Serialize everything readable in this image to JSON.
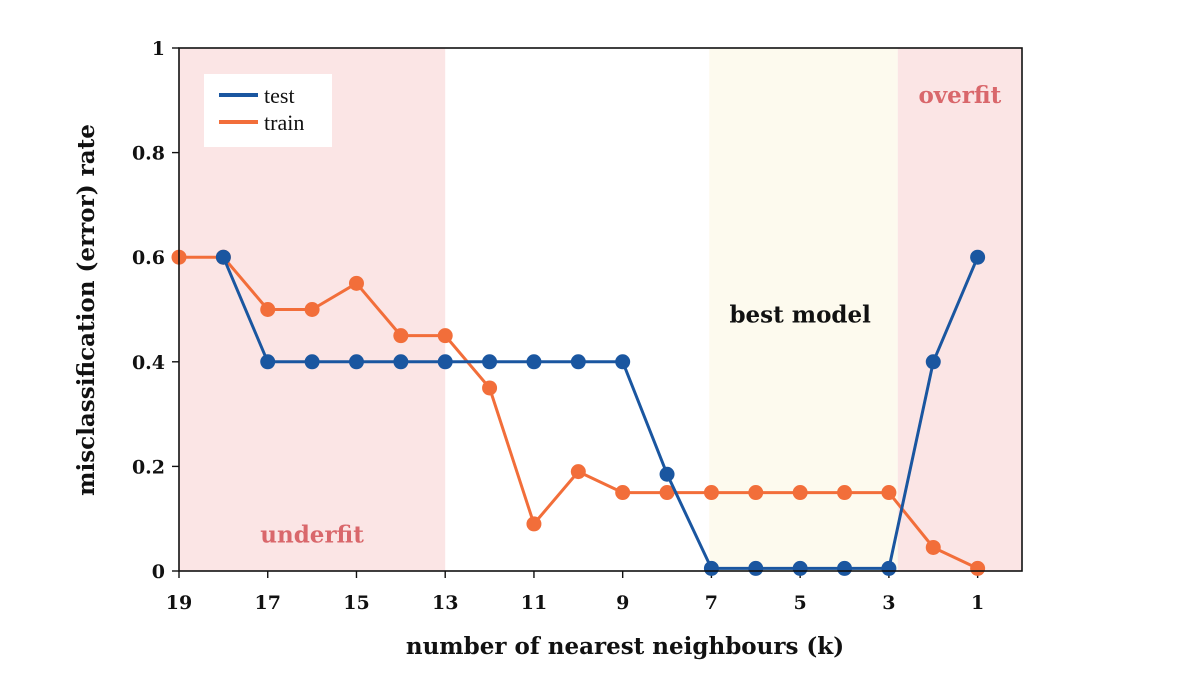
{
  "chart_data": {
    "type": "line",
    "xlabel": "number of nearest neighbours (k)",
    "ylabel": "misclassification (error) rate",
    "xlim": [
      19,
      0
    ],
    "ylim": [
      0,
      1
    ],
    "x_reversed": true,
    "x_ticks": [
      {
        "value": 19,
        "label": "19"
      },
      {
        "value": 17,
        "label": "17"
      },
      {
        "value": 15,
        "label": "15"
      },
      {
        "value": 13,
        "label": "13"
      },
      {
        "value": 11,
        "label": "11"
      },
      {
        "value": 9,
        "label": "9"
      },
      {
        "value": 7,
        "label": "7"
      },
      {
        "value": 5,
        "label": "5"
      },
      {
        "value": 3,
        "label": "3"
      },
      {
        "value": 1,
        "label": "1"
      }
    ],
    "y_ticks": [
      {
        "value": 0,
        "label": "0"
      },
      {
        "value": 0.2,
        "label": "0.2"
      },
      {
        "value": 0.4,
        "label": "0.4"
      },
      {
        "value": 0.6,
        "label": "0.6"
      },
      {
        "value": 0.8,
        "label": "0.8"
      },
      {
        "value": 1,
        "label": "1"
      }
    ],
    "grid": false,
    "legend_position": "top-left",
    "regions": [
      {
        "label": "underfit",
        "x_from": 19,
        "x_to": 13,
        "color": "#fbe5e5",
        "label_color": "#d9676b",
        "label_x": 16,
        "label_y": 0.07
      },
      {
        "label": "best model",
        "x_from": 7.05,
        "x_to": 2.8,
        "color": "#fdfaee",
        "label_color": "#111111",
        "label_x": 5,
        "label_y": 0.49
      },
      {
        "label": "overfit",
        "x_from": 2.8,
        "x_to": 0,
        "color": "#fbe5e5",
        "label_color": "#d9676b",
        "label_x": 1.4,
        "label_y": 0.91
      }
    ],
    "series": [
      {
        "name": "test",
        "color": "#1a56a0",
        "x": [
          18,
          17,
          16,
          15,
          14,
          13,
          12,
          11,
          10,
          9,
          8,
          7,
          6,
          5,
          4,
          3,
          2,
          1
        ],
        "y": [
          0.6,
          0.4,
          0.4,
          0.4,
          0.4,
          0.4,
          0.4,
          0.4,
          0.4,
          0.4,
          0.185,
          0.005,
          0.005,
          0.005,
          0.005,
          0.005,
          0.4,
          0.6
        ]
      },
      {
        "name": "train",
        "color": "#f26e3a",
        "x": [
          19,
          18,
          17,
          16,
          15,
          14,
          13,
          12,
          11,
          10,
          9,
          8,
          7,
          6,
          5,
          4,
          3,
          2,
          1
        ],
        "y": [
          0.6,
          0.6,
          0.5,
          0.5,
          0.55,
          0.45,
          0.45,
          0.35,
          0.09,
          0.19,
          0.15,
          0.15,
          0.15,
          0.15,
          0.15,
          0.15,
          0.15,
          0.045,
          0.005
        ]
      }
    ]
  }
}
